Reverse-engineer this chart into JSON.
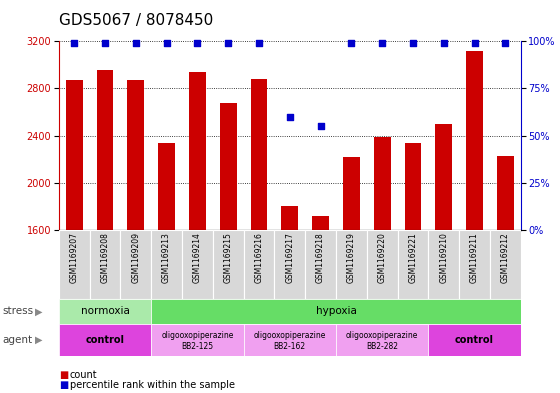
{
  "title": "GDS5067 / 8078450",
  "samples": [
    "GSM1169207",
    "GSM1169208",
    "GSM1169209",
    "GSM1169213",
    "GSM1169214",
    "GSM1169215",
    "GSM1169216",
    "GSM1169217",
    "GSM1169218",
    "GSM1169219",
    "GSM1169220",
    "GSM1169221",
    "GSM1169210",
    "GSM1169211",
    "GSM1169212"
  ],
  "counts": [
    2870,
    2960,
    2870,
    2340,
    2940,
    2680,
    2880,
    1800,
    1720,
    2220,
    2390,
    2340,
    2500,
    3120,
    2230
  ],
  "percentile_ranks": [
    99,
    99,
    99,
    99,
    99,
    99,
    99,
    60,
    55,
    99,
    99,
    99,
    99,
    99,
    99
  ],
  "bar_color": "#cc0000",
  "dot_color": "#0000cc",
  "ylim_left": [
    1600,
    3200
  ],
  "yticks_left": [
    1600,
    2000,
    2400,
    2800,
    3200
  ],
  "ylim_right": [
    0,
    100
  ],
  "yticks_right": [
    0,
    25,
    50,
    75,
    100
  ],
  "stress_groups": [
    {
      "label": "normoxia",
      "start": 0,
      "end": 3,
      "color": "#aaeaaa"
    },
    {
      "label": "hypoxia",
      "start": 3,
      "end": 15,
      "color": "#66dd66"
    }
  ],
  "agent_groups": [
    {
      "label": "control",
      "start": 0,
      "end": 3,
      "color": "#dd44dd",
      "bold": true
    },
    {
      "label": "oligooxopiperazine",
      "sub": "BB2-125",
      "start": 3,
      "end": 6,
      "color": "#f0a0f0",
      "bold": false
    },
    {
      "label": "oligooxopiperazine",
      "sub": "BB2-162",
      "start": 6,
      "end": 9,
      "color": "#f0a0f0",
      "bold": false
    },
    {
      "label": "oligooxopiperazine",
      "sub": "BB2-282",
      "start": 9,
      "end": 12,
      "color": "#f0a0f0",
      "bold": false
    },
    {
      "label": "control",
      "sub": "",
      "start": 12,
      "end": 15,
      "color": "#dd44dd",
      "bold": true
    }
  ],
  "ylabel_left_color": "#cc0000",
  "ylabel_right_color": "#0000cc",
  "stress_label": "stress",
  "agent_label": "agent",
  "legend_count_label": "count",
  "legend_pct_label": "percentile rank within the sample",
  "title_fontsize": 11,
  "tick_fontsize": 7,
  "bar_width": 0.55
}
